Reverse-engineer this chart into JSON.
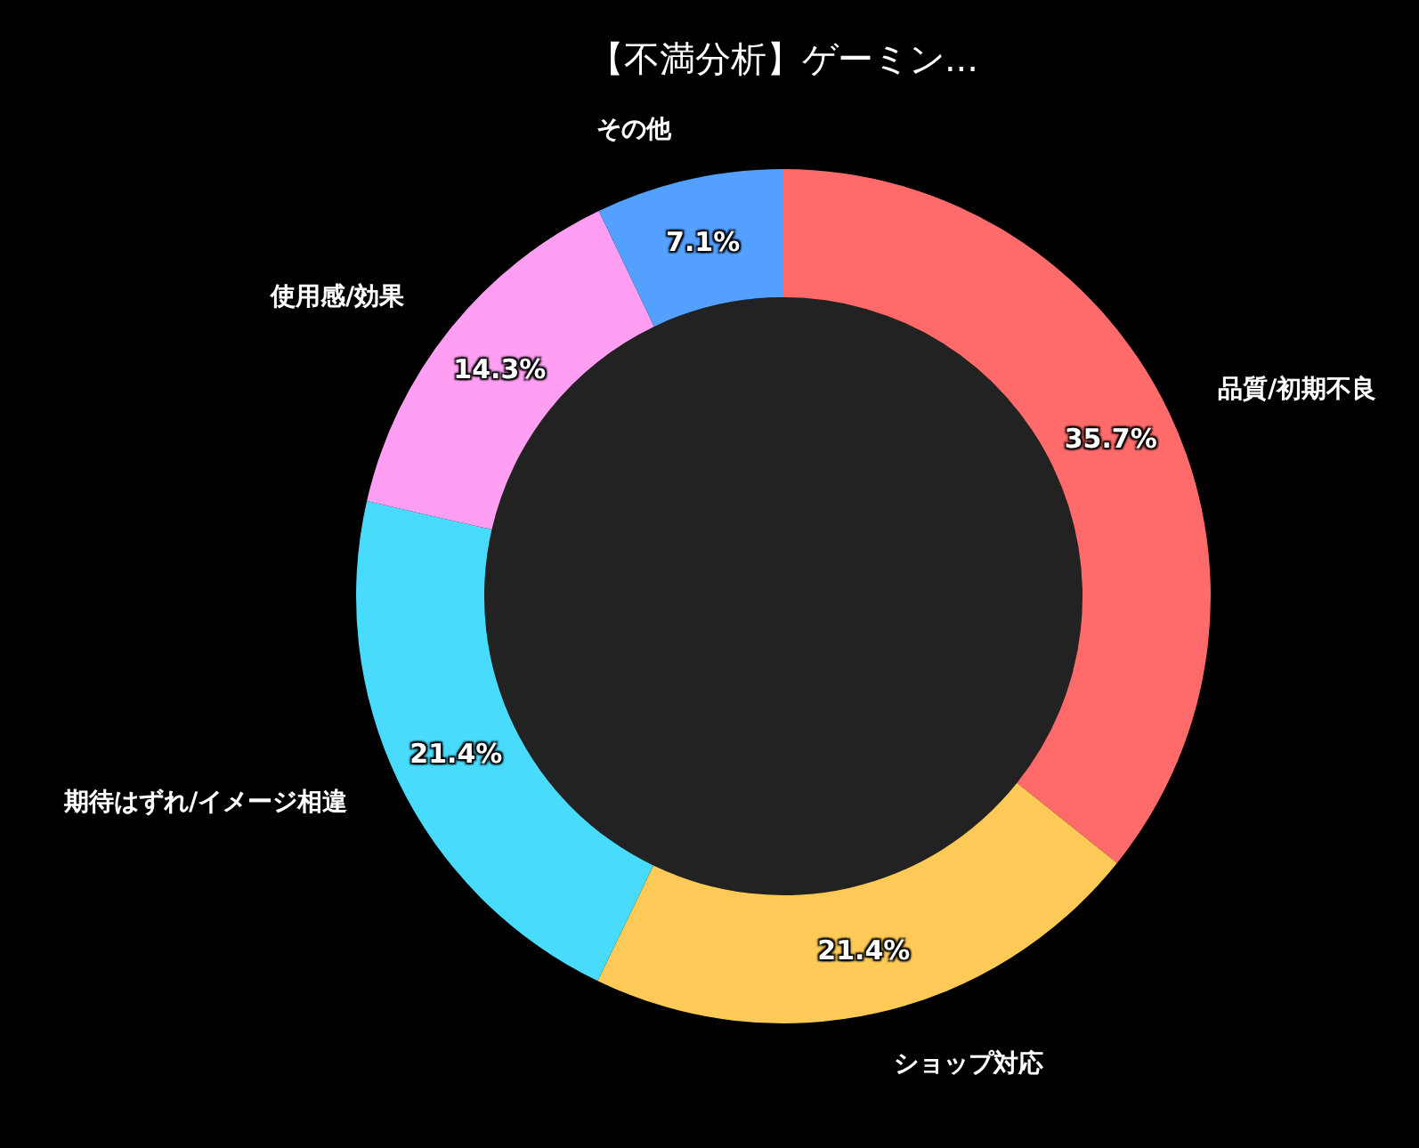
{
  "chart_data": {
    "type": "donut",
    "title": "【不満分析】ゲーミン...",
    "categories": [
      "品質/初期不良",
      "ショップ対応",
      "期待はずれ/イメージ相違",
      "使用感/効果",
      "その他"
    ],
    "values": [
      35.7,
      21.4,
      21.4,
      14.3,
      7.1
    ],
    "colors": [
      "#ff6b6b",
      "#feca57",
      "#48dbfb",
      "#ff9ff3",
      "#54a0ff"
    ],
    "value_labels": [
      "35.7%",
      "21.4%",
      "21.4%",
      "14.3%",
      "7.1%"
    ],
    "legend": false
  }
}
